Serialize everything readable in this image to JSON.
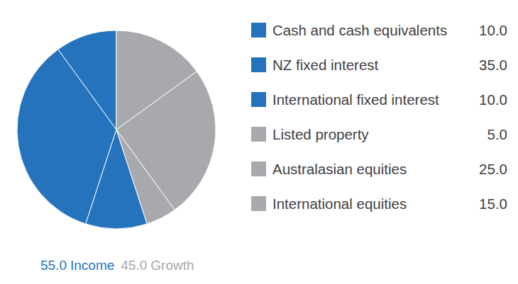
{
  "chart_data": {
    "type": "pie",
    "categories": [
      "Cash and cash equivalents",
      "NZ fixed interest",
      "International fixed interest",
      "Listed property",
      "Australasian equities",
      "International equities"
    ],
    "values": [
      10,
      35,
      10,
      5,
      25,
      15
    ],
    "value_labels": [
      "10.0",
      "35.0",
      "10.0",
      "5.0",
      "25.0",
      "15.0"
    ],
    "colors": [
      "#2573bd",
      "#2573bd",
      "#2573bd",
      "#a7a9ac",
      "#a7a9ac",
      "#a7a9ac"
    ],
    "legend": "right",
    "totals": {
      "labels": [
        "Income",
        "Growth"
      ],
      "values": [
        55,
        45
      ],
      "value_labels": [
        "55.0",
        "45.0"
      ],
      "colors": [
        "#2573bd",
        "#a7a9ac"
      ]
    }
  }
}
